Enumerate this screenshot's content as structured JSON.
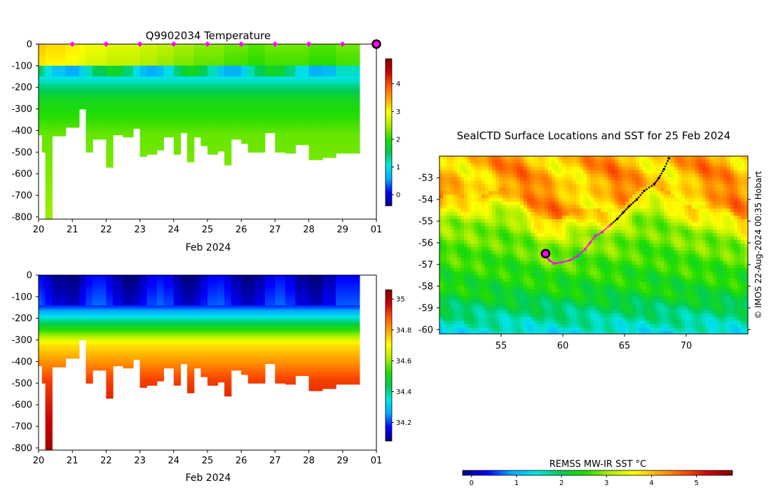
{
  "chart_data": [
    {
      "type": "heatmap",
      "title": "Q9902034  Temperature",
      "xlabel": "Feb 2024",
      "ylabel": "",
      "x_ticks": [
        "20",
        "21",
        "22",
        "23",
        "24",
        "25",
        "26",
        "27",
        "28",
        "29",
        "01"
      ],
      "x_tick_values": [
        20,
        21,
        22,
        23,
        24,
        25,
        26,
        27,
        28,
        29,
        30
      ],
      "xlim": [
        20,
        30
      ],
      "y_ticks": [
        "0",
        "-100",
        "-200",
        "-300",
        "-400",
        "-500",
        "-600",
        "-700",
        "-800"
      ],
      "y_tick_values": [
        0,
        -100,
        -200,
        -300,
        -400,
        -500,
        -600,
        -700,
        -800
      ],
      "ylim": [
        -810,
        0
      ],
      "colorbar": {
        "ticks": [
          "0",
          "1",
          "2",
          "3",
          "4"
        ],
        "tick_values": [
          0,
          1,
          2,
          3,
          4
        ],
        "range": [
          -0.4,
          4.9
        ],
        "colormap": [
          "#000080",
          "#0000ff",
          "#00aaff",
          "#00e5e5",
          "#00cc55",
          "#22dd00",
          "#aaee00",
          "#ffff00",
          "#ffaa00",
          "#ff5500",
          "#cc0000",
          "#800000"
        ]
      },
      "profile_markers": {
        "color": "#ff00ff",
        "days": [
          21,
          22,
          23,
          24,
          25,
          26,
          27,
          28,
          29
        ]
      },
      "current_position_marker": {
        "day": 30,
        "depth": 0
      },
      "profiles": [
        {
          "start": 20.0,
          "end": 20.1,
          "max_depth": -420,
          "surface_value": 3.3
        },
        {
          "start": 20.1,
          "end": 20.2,
          "max_depth": -500,
          "surface_value": 3.3
        },
        {
          "start": 20.2,
          "end": 20.4,
          "max_depth": -810,
          "surface_value": 3.2
        },
        {
          "start": 20.4,
          "end": 20.8,
          "max_depth": -425,
          "surface_value": 3.2
        },
        {
          "start": 20.8,
          "end": 21.2,
          "max_depth": -385,
          "surface_value": 3.1
        },
        {
          "start": 21.2,
          "end": 21.4,
          "max_depth": -300,
          "surface_value": 3.0
        },
        {
          "start": 21.4,
          "end": 21.6,
          "max_depth": -500,
          "surface_value": 2.9
        },
        {
          "start": 21.6,
          "end": 22.0,
          "max_depth": -440,
          "surface_value": 2.9
        },
        {
          "start": 22.0,
          "end": 22.2,
          "max_depth": -570,
          "surface_value": 2.8
        },
        {
          "start": 22.2,
          "end": 22.5,
          "max_depth": -420,
          "surface_value": 2.8
        },
        {
          "start": 22.5,
          "end": 22.8,
          "max_depth": -430,
          "surface_value": 2.8
        },
        {
          "start": 22.8,
          "end": 23.0,
          "max_depth": -390,
          "surface_value": 2.8
        },
        {
          "start": 23.0,
          "end": 23.2,
          "max_depth": -520,
          "surface_value": 2.7
        },
        {
          "start": 23.2,
          "end": 23.5,
          "max_depth": -510,
          "surface_value": 2.7
        },
        {
          "start": 23.5,
          "end": 23.7,
          "max_depth": -490,
          "surface_value": 2.6
        },
        {
          "start": 23.7,
          "end": 24.0,
          "max_depth": -430,
          "surface_value": 2.6
        },
        {
          "start": 24.0,
          "end": 24.2,
          "max_depth": -510,
          "surface_value": 2.5
        },
        {
          "start": 24.2,
          "end": 24.4,
          "max_depth": -410,
          "surface_value": 2.5
        },
        {
          "start": 24.4,
          "end": 24.6,
          "max_depth": -545,
          "surface_value": 2.5
        },
        {
          "start": 24.6,
          "end": 24.8,
          "max_depth": -430,
          "surface_value": 2.4
        },
        {
          "start": 24.8,
          "end": 25.0,
          "max_depth": -470,
          "surface_value": 2.4
        },
        {
          "start": 25.0,
          "end": 25.3,
          "max_depth": -510,
          "surface_value": 2.4
        },
        {
          "start": 25.3,
          "end": 25.5,
          "max_depth": -495,
          "surface_value": 2.4
        },
        {
          "start": 25.5,
          "end": 25.7,
          "max_depth": -560,
          "surface_value": 2.3
        },
        {
          "start": 25.7,
          "end": 26.0,
          "max_depth": -440,
          "surface_value": 2.3
        },
        {
          "start": 26.0,
          "end": 26.2,
          "max_depth": -460,
          "surface_value": 2.3
        },
        {
          "start": 26.2,
          "end": 26.4,
          "max_depth": -500,
          "surface_value": 2.2
        },
        {
          "start": 26.4,
          "end": 26.7,
          "max_depth": -500,
          "surface_value": 2.2
        },
        {
          "start": 26.7,
          "end": 27.0,
          "max_depth": -410,
          "surface_value": 2.3
        },
        {
          "start": 27.0,
          "end": 27.3,
          "max_depth": -500,
          "surface_value": 2.3
        },
        {
          "start": 27.3,
          "end": 27.6,
          "max_depth": -505,
          "surface_value": 2.3
        },
        {
          "start": 27.6,
          "end": 28.0,
          "max_depth": -465,
          "surface_value": 2.3
        },
        {
          "start": 28.0,
          "end": 28.4,
          "max_depth": -535,
          "surface_value": 2.2
        },
        {
          "start": 28.4,
          "end": 28.8,
          "max_depth": -525,
          "surface_value": 2.2
        },
        {
          "start": 28.8,
          "end": 29.5,
          "max_depth": -505,
          "surface_value": 2.3
        }
      ]
    },
    {
      "type": "heatmap",
      "title": "",
      "xlabel": "Feb 2024",
      "ylabel": "",
      "x_ticks": [
        "20",
        "21",
        "22",
        "23",
        "24",
        "25",
        "26",
        "27",
        "28",
        "29",
        "01"
      ],
      "x_tick_values": [
        20,
        21,
        22,
        23,
        24,
        25,
        26,
        27,
        28,
        29,
        30
      ],
      "xlim": [
        20,
        30
      ],
      "y_ticks": [
        "0",
        "-100",
        "-200",
        "-300",
        "-400",
        "-500",
        "-600",
        "-700",
        "-800"
      ],
      "y_tick_values": [
        0,
        -100,
        -200,
        -300,
        -400,
        -500,
        -600,
        -700,
        -800
      ],
      "ylim": [
        -810,
        0
      ],
      "colorbar": {
        "ticks": [
          "34.2",
          "34.4",
          "34.6",
          "34.8",
          "35"
        ],
        "tick_values": [
          34.2,
          34.4,
          34.6,
          34.8,
          35.0
        ],
        "range": [
          34.08,
          35.06
        ],
        "colormap": [
          "#000080",
          "#0000ff",
          "#00aaff",
          "#00e5e5",
          "#00cc55",
          "#22dd00",
          "#aaee00",
          "#ffff00",
          "#ffaa00",
          "#ff5500",
          "#cc0000",
          "#800000"
        ]
      }
    },
    {
      "type": "heatmap",
      "title": "SealCTD Surface Locations and SST for 25 Feb 2024",
      "xlabel": "",
      "ylabel": "",
      "x_ticks": [
        "55",
        "60",
        "65",
        "70"
      ],
      "x_tick_values": [
        55,
        60,
        65,
        70
      ],
      "xlim": [
        50,
        75
      ],
      "y_ticks": [
        "-53",
        "-54",
        "-55",
        "-56",
        "-57",
        "-58",
        "-59",
        "-60"
      ],
      "y_tick_values": [
        -53,
        -54,
        -55,
        -56,
        -57,
        -58,
        -59,
        -60
      ],
      "ylim": [
        -60.2,
        -52.0
      ],
      "colorbar": {
        "label": "REMSS MW-IR SST °C",
        "ticks": [
          "0",
          "1",
          "2",
          "3",
          "4",
          "5"
        ],
        "tick_values": [
          0,
          1,
          2,
          3,
          4,
          5
        ],
        "range": [
          -0.2,
          5.8
        ],
        "colormap": [
          "#000080",
          "#0000ff",
          "#00aaff",
          "#00e5e5",
          "#00cc55",
          "#22dd00",
          "#aaee00",
          "#ffff00",
          "#ffaa00",
          "#ff5500",
          "#cc0000",
          "#800000"
        ]
      },
      "track": [
        [
          68.6,
          -52.1
        ],
        [
          68.2,
          -52.6
        ],
        [
          67.8,
          -53.0
        ],
        [
          67.4,
          -53.3
        ],
        [
          66.6,
          -53.6
        ],
        [
          66.0,
          -54.0
        ],
        [
          65.4,
          -54.3
        ],
        [
          64.9,
          -54.6
        ],
        [
          64.4,
          -54.9
        ],
        [
          63.8,
          -55.2
        ],
        [
          63.2,
          -55.5
        ],
        [
          62.6,
          -55.7
        ],
        [
          62.2,
          -56.0
        ],
        [
          61.8,
          -56.3
        ],
        [
          61.2,
          -56.6
        ],
        [
          60.6,
          -56.8
        ],
        [
          59.9,
          -56.9
        ],
        [
          59.3,
          -56.95
        ],
        [
          58.9,
          -56.8
        ],
        [
          58.6,
          -56.6
        ]
      ],
      "current_position": [
        58.6,
        -56.5
      ],
      "credit": "© IMOS 22-Aug-2024 00:35 Hobart"
    }
  ]
}
